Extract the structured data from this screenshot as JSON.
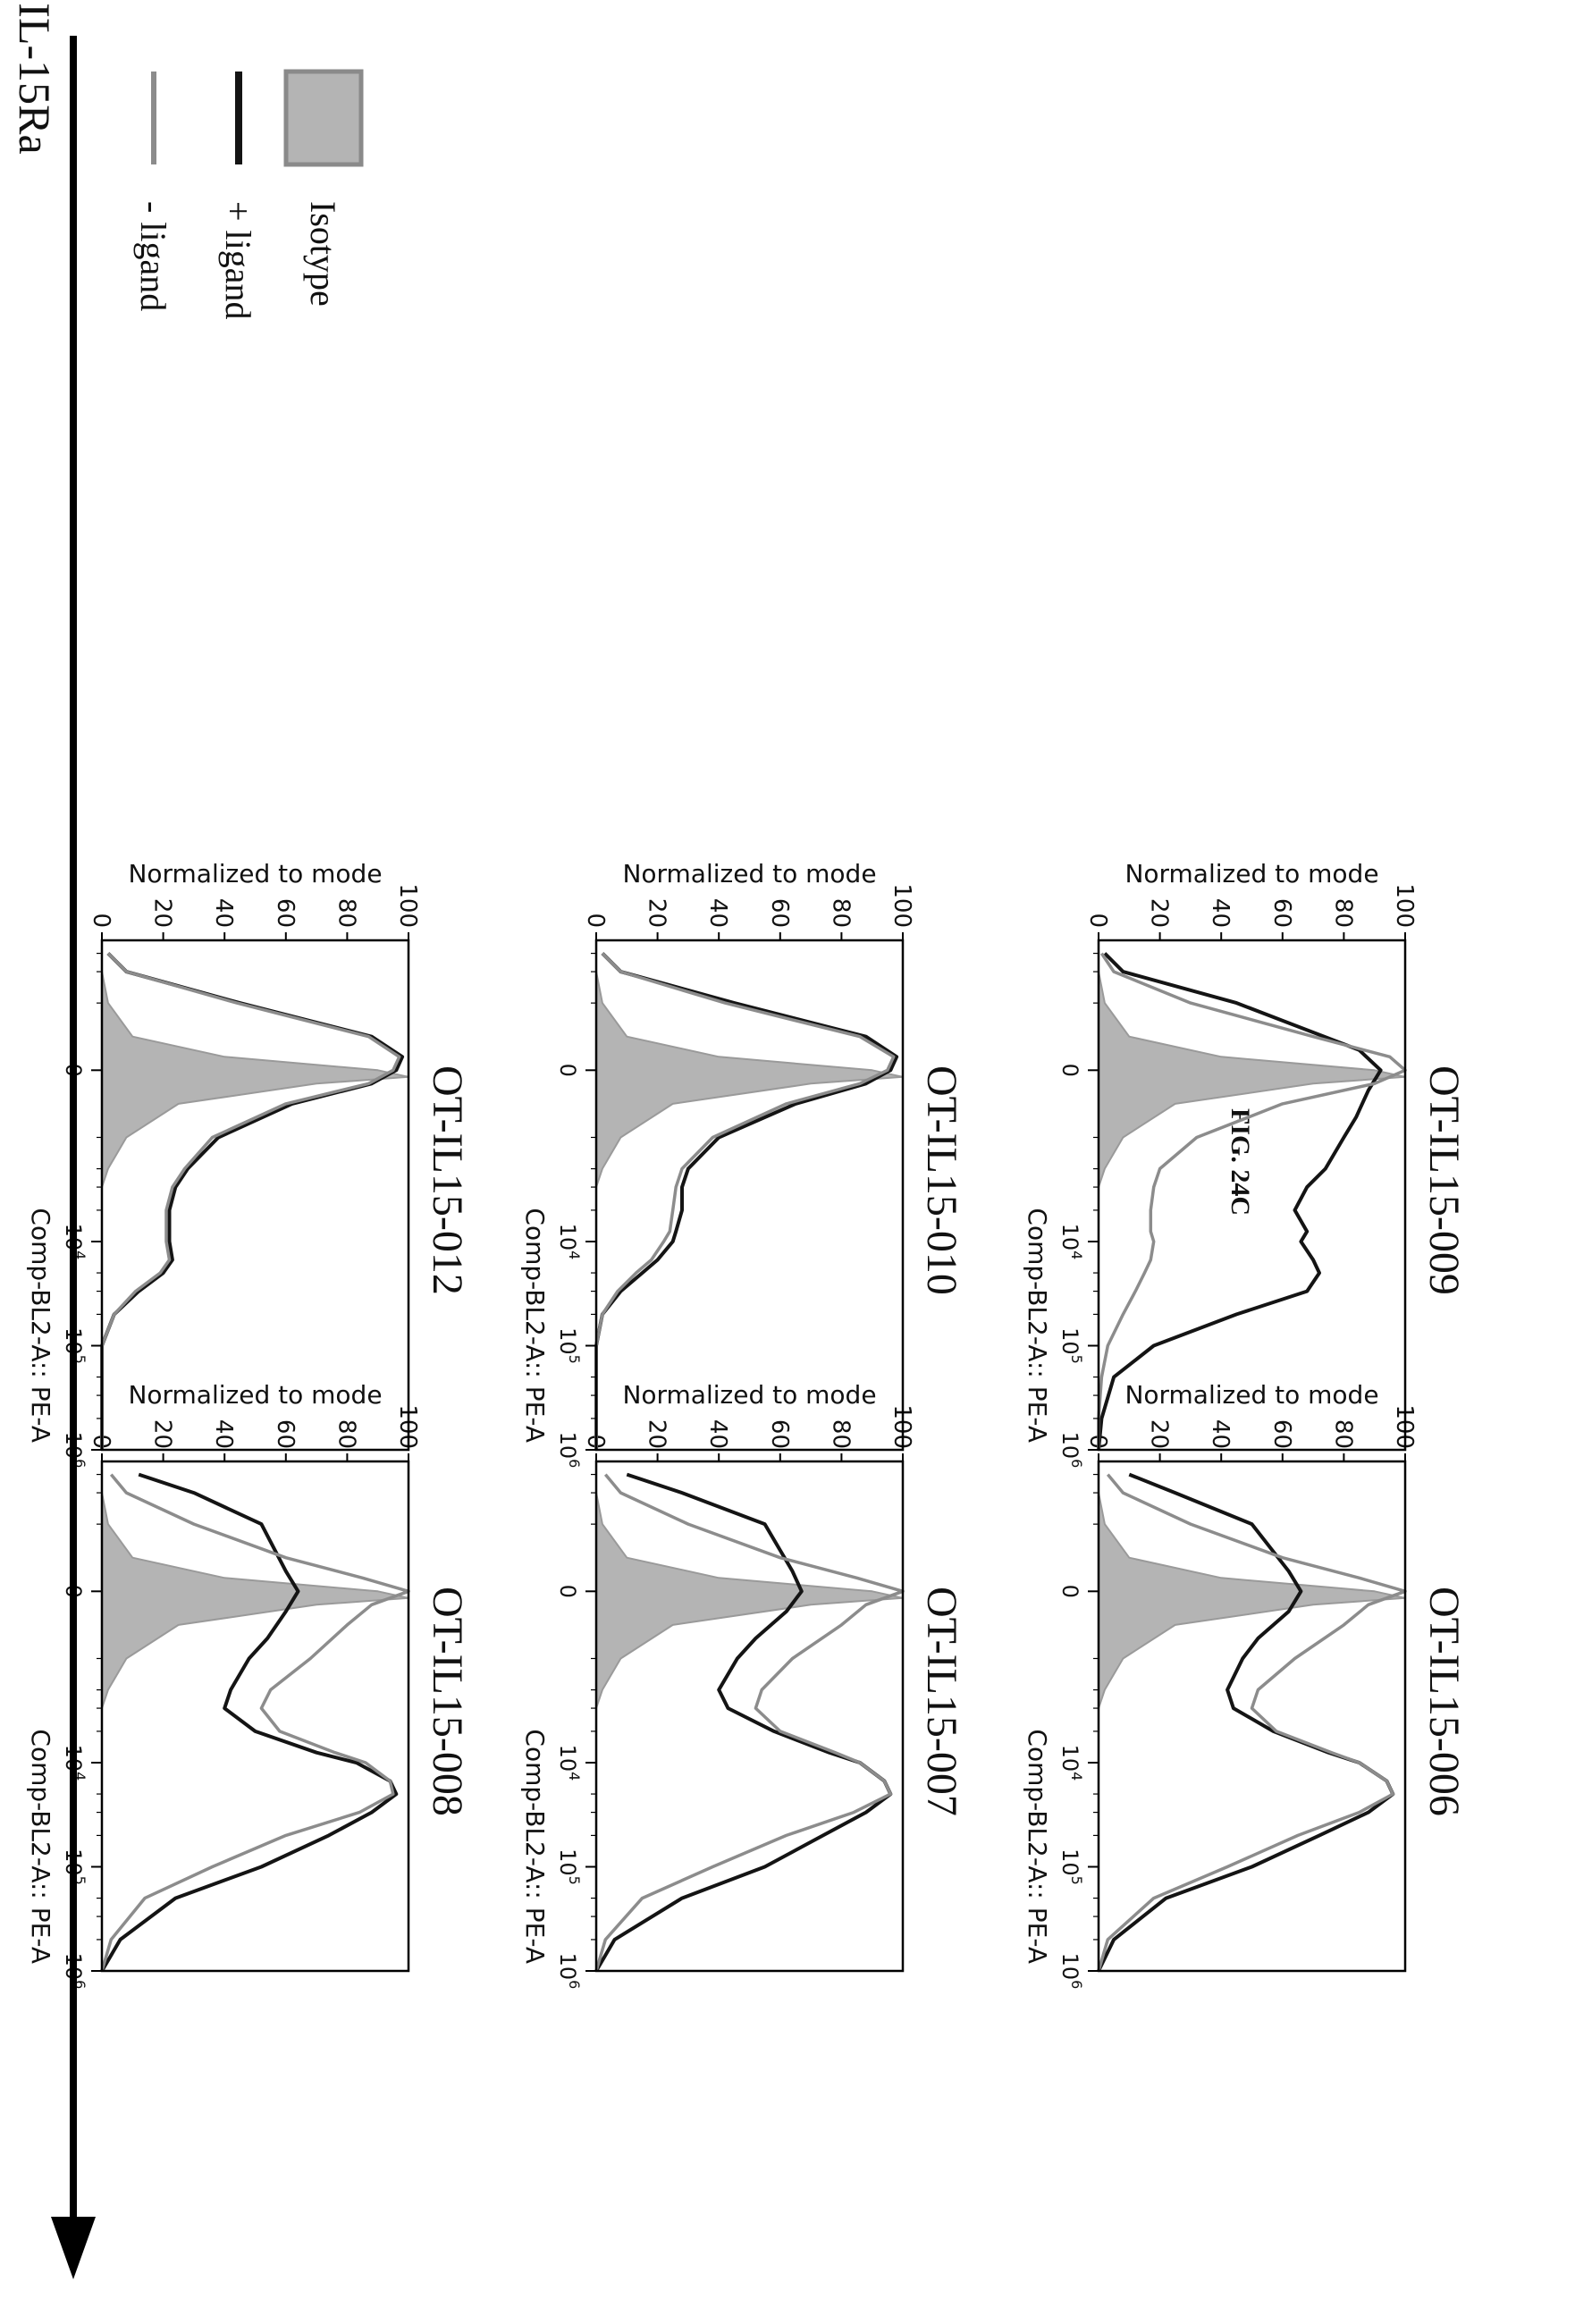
{
  "figure": {
    "label": "FIG. 24C",
    "bottom_arrow_label": "IL-15Ra"
  },
  "legend": {
    "items": [
      {
        "label": "Isotype",
        "kind": "filled",
        "color": "#b4b4b4"
      },
      {
        "label": "+ ligand",
        "kind": "line",
        "color": "#141414"
      },
      {
        "label": "- ligand",
        "kind": "line",
        "color": "#8c8c8c"
      }
    ]
  },
  "chart_data": [
    {
      "type": "area",
      "title": "OT-IL15-006",
      "xlabel": "Comp-BL2-A:: PE-A",
      "ylabel": "Normalized to mode",
      "x_scale": "biexponential",
      "x_ticks": [
        "0",
        "10^4",
        "10^5",
        "10^6"
      ],
      "y_ticks": [
        0,
        20,
        40,
        60,
        80,
        100
      ],
      "ylim": [
        0,
        100
      ],
      "series": [
        {
          "name": "Isotype",
          "x": [
            -2000,
            -1000,
            -500,
            -200,
            0,
            100,
            200,
            500,
            1000,
            2000,
            3000,
            1000000
          ],
          "y": [
            0,
            2,
            10,
            40,
            90,
            100,
            70,
            25,
            8,
            2,
            0,
            0
          ]
        },
        {
          "name": "+ ligand",
          "x": [
            -3000,
            -2000,
            -1000,
            -300,
            0,
            300,
            700,
            1000,
            2000,
            3000,
            5000,
            8000,
            10000,
            15000,
            20000,
            30000,
            50000,
            100000,
            200000,
            500000,
            1000000
          ],
          "y": [
            10,
            25,
            50,
            62,
            66,
            62,
            52,
            47,
            42,
            44,
            57,
            75,
            85,
            94,
            96,
            88,
            72,
            50,
            22,
            5,
            0
          ]
        },
        {
          "name": "- ligand",
          "x": [
            -3000,
            -2000,
            -1000,
            -500,
            -200,
            0,
            200,
            500,
            1000,
            2000,
            3000,
            5000,
            8000,
            10000,
            15000,
            20000,
            30000,
            50000,
            100000,
            200000,
            500000,
            1000000
          ],
          "y": [
            3,
            8,
            30,
            60,
            85,
            100,
            88,
            80,
            64,
            52,
            50,
            58,
            76,
            85,
            94,
            96,
            85,
            65,
            42,
            18,
            3,
            0
          ]
        }
      ]
    },
    {
      "type": "area",
      "title": "OT-IL15-007",
      "xlabel": "Comp-BL2-A:: PE-A",
      "ylabel": "Normalized to mode",
      "x_scale": "biexponential",
      "x_ticks": [
        "0",
        "10^4",
        "10^5",
        "10^6"
      ],
      "y_ticks": [
        0,
        20,
        40,
        60,
        80,
        100
      ],
      "ylim": [
        0,
        100
      ],
      "series": [
        {
          "name": "Isotype",
          "x": [
            -2000,
            -1000,
            -500,
            -200,
            0,
            100,
            200,
            500,
            1000,
            2000,
            3000,
            1000000
          ],
          "y": [
            0,
            2,
            10,
            40,
            90,
            100,
            70,
            25,
            8,
            2,
            0,
            0
          ]
        },
        {
          "name": "+ ligand",
          "x": [
            -3000,
            -2000,
            -1000,
            -300,
            0,
            300,
            700,
            1000,
            2000,
            3000,
            5000,
            8000,
            10000,
            15000,
            20000,
            30000,
            50000,
            100000,
            200000,
            500000,
            1000000
          ],
          "y": [
            10,
            28,
            55,
            64,
            67,
            62,
            52,
            46,
            40,
            43,
            58,
            76,
            86,
            94,
            96,
            88,
            74,
            55,
            28,
            6,
            0
          ]
        },
        {
          "name": "- ligand",
          "x": [
            -3000,
            -2000,
            -1000,
            -500,
            -200,
            0,
            200,
            500,
            1000,
            2000,
            3000,
            5000,
            8000,
            10000,
            15000,
            20000,
            30000,
            50000,
            100000,
            200000,
            500000,
            1000000
          ],
          "y": [
            3,
            8,
            30,
            60,
            85,
            100,
            88,
            80,
            64,
            54,
            52,
            60,
            78,
            86,
            94,
            96,
            84,
            62,
            38,
            15,
            3,
            0
          ]
        }
      ]
    },
    {
      "type": "area",
      "title": "OT-IL15-008",
      "xlabel": "Comp-BL2-A:: PE-A",
      "ylabel": "Normalized to mode",
      "x_scale": "biexponential",
      "x_ticks": [
        "0",
        "10^4",
        "10^5",
        "10^6"
      ],
      "y_ticks": [
        0,
        20,
        40,
        60,
        80,
        100
      ],
      "ylim": [
        0,
        100
      ],
      "series": [
        {
          "name": "Isotype",
          "x": [
            -2000,
            -1000,
            -500,
            -200,
            0,
            100,
            200,
            500,
            1000,
            2000,
            3000,
            1000000
          ],
          "y": [
            0,
            2,
            10,
            40,
            90,
            100,
            70,
            25,
            8,
            2,
            0,
            0
          ]
        },
        {
          "name": "+ ligand",
          "x": [
            -3000,
            -2000,
            -1000,
            -300,
            0,
            300,
            700,
            1000,
            2000,
            3000,
            5000,
            8000,
            10000,
            15000,
            20000,
            30000,
            50000,
            100000,
            200000,
            500000,
            1000000
          ],
          "y": [
            12,
            30,
            52,
            60,
            64,
            60,
            54,
            48,
            42,
            40,
            50,
            70,
            83,
            94,
            96,
            88,
            74,
            52,
            24,
            6,
            0
          ]
        },
        {
          "name": "- ligand",
          "x": [
            -3000,
            -2000,
            -1000,
            -500,
            -200,
            0,
            200,
            500,
            1000,
            2000,
            3000,
            5000,
            8000,
            10000,
            15000,
            20000,
            30000,
            50000,
            100000,
            200000,
            500000,
            1000000
          ],
          "y": [
            3,
            8,
            30,
            60,
            85,
            100,
            88,
            80,
            68,
            55,
            52,
            58,
            76,
            86,
            94,
            95,
            84,
            60,
            36,
            14,
            3,
            0
          ]
        }
      ]
    },
    {
      "type": "area",
      "title": "OT-IL15-009",
      "xlabel": "Comp-BL2-A:: PE-A",
      "ylabel": "Normalized to mode",
      "x_scale": "biexponential",
      "x_ticks": [
        "0",
        "10^4",
        "10^5",
        "10^6"
      ],
      "y_ticks": [
        0,
        20,
        40,
        60,
        80,
        100
      ],
      "ylim": [
        0,
        100
      ],
      "series": [
        {
          "name": "Isotype",
          "x": [
            -2000,
            -1000,
            -500,
            -200,
            0,
            100,
            200,
            500,
            1000,
            2000,
            3000,
            1000000
          ],
          "y": [
            0,
            2,
            10,
            40,
            90,
            100,
            70,
            25,
            8,
            2,
            0,
            0
          ]
        },
        {
          "name": "+ ligand",
          "x": [
            -3000,
            -2000,
            -1000,
            -300,
            0,
            300,
            700,
            1000,
            2000,
            3000,
            5000,
            8000,
            10000,
            15000,
            20000,
            30000,
            50000,
            100000,
            200000,
            500000,
            1000000
          ],
          "y": [
            2,
            8,
            45,
            85,
            92,
            88,
            84,
            80,
            74,
            68,
            64,
            68,
            66,
            70,
            72,
            68,
            45,
            18,
            5,
            1,
            0
          ]
        },
        {
          "name": "- ligand",
          "x": [
            -3000,
            -2000,
            -1000,
            -500,
            -200,
            0,
            200,
            500,
            1000,
            2000,
            3000,
            5000,
            8000,
            10000,
            15000,
            20000,
            30000,
            50000,
            100000,
            200000,
            500000,
            1000000
          ],
          "y": [
            1,
            5,
            30,
            70,
            95,
            100,
            90,
            60,
            32,
            20,
            18,
            17,
            17,
            18,
            17,
            15,
            12,
            8,
            3,
            1,
            0,
            0
          ]
        }
      ]
    },
    {
      "type": "area",
      "title": "OT-IL15-010",
      "xlabel": "Comp-BL2-A:: PE-A",
      "ylabel": "Normalized to mode",
      "x_scale": "biexponential",
      "x_ticks": [
        "0",
        "10^4",
        "10^5",
        "10^6"
      ],
      "y_ticks": [
        0,
        20,
        40,
        60,
        80,
        100
      ],
      "ylim": [
        0,
        100
      ],
      "series": [
        {
          "name": "Isotype",
          "x": [
            -2000,
            -1000,
            -500,
            -200,
            0,
            100,
            200,
            500,
            1000,
            2000,
            3000,
            1000000
          ],
          "y": [
            0,
            2,
            10,
            40,
            90,
            100,
            70,
            25,
            8,
            2,
            0,
            0
          ]
        },
        {
          "name": "+ ligand",
          "x": [
            -3000,
            -2000,
            -1000,
            -500,
            -200,
            0,
            200,
            500,
            1000,
            2000,
            3000,
            5000,
            8000,
            10000,
            15000,
            20000,
            30000,
            50000,
            100000,
            200000,
            1000000
          ],
          "y": [
            2,
            8,
            45,
            88,
            98,
            96,
            88,
            65,
            40,
            30,
            28,
            28,
            26,
            25,
            20,
            15,
            8,
            2,
            0,
            0,
            0
          ]
        },
        {
          "name": "- ligand",
          "x": [
            -3000,
            -2000,
            -1000,
            -500,
            -200,
            0,
            200,
            500,
            1000,
            2000,
            3000,
            5000,
            8000,
            10000,
            15000,
            20000,
            30000,
            50000,
            100000,
            200000,
            1000000
          ],
          "y": [
            2,
            8,
            42,
            86,
            97,
            95,
            86,
            62,
            38,
            28,
            26,
            25,
            24,
            22,
            18,
            13,
            7,
            2,
            0,
            0,
            0
          ]
        }
      ]
    },
    {
      "type": "area",
      "title": "OT-IL15-012",
      "xlabel": "Comp-BL2-A:: PE-A",
      "ylabel": "Normalized to mode",
      "x_scale": "biexponential",
      "x_ticks": [
        "0",
        "10^4",
        "10^5",
        "10^6"
      ],
      "y_ticks": [
        0,
        20,
        40,
        60,
        80,
        100
      ],
      "ylim": [
        0,
        100
      ],
      "series": [
        {
          "name": "Isotype",
          "x": [
            -2000,
            -1000,
            -500,
            -200,
            0,
            100,
            200,
            500,
            1000,
            2000,
            3000,
            1000000
          ],
          "y": [
            0,
            2,
            10,
            40,
            90,
            100,
            70,
            25,
            8,
            2,
            0,
            0
          ]
        },
        {
          "name": "+ ligand",
          "x": [
            -3000,
            -2000,
            -1000,
            -500,
            -200,
            0,
            200,
            500,
            1000,
            2000,
            3000,
            5000,
            8000,
            10000,
            15000,
            20000,
            30000,
            50000,
            100000,
            200000,
            1000000
          ],
          "y": [
            2,
            8,
            45,
            88,
            98,
            96,
            88,
            62,
            38,
            28,
            24,
            22,
            22,
            22,
            23,
            20,
            12,
            4,
            0,
            0,
            0
          ]
        },
        {
          "name": "- ligand",
          "x": [
            -3000,
            -2000,
            -1000,
            -500,
            -200,
            0,
            200,
            500,
            1000,
            2000,
            3000,
            5000,
            8000,
            10000,
            15000,
            20000,
            30000,
            50000,
            100000,
            200000,
            1000000
          ],
          "y": [
            2,
            8,
            44,
            87,
            97,
            95,
            87,
            60,
            36,
            27,
            23,
            21,
            21,
            21,
            22,
            19,
            11,
            4,
            0,
            0,
            0
          ]
        }
      ]
    }
  ]
}
